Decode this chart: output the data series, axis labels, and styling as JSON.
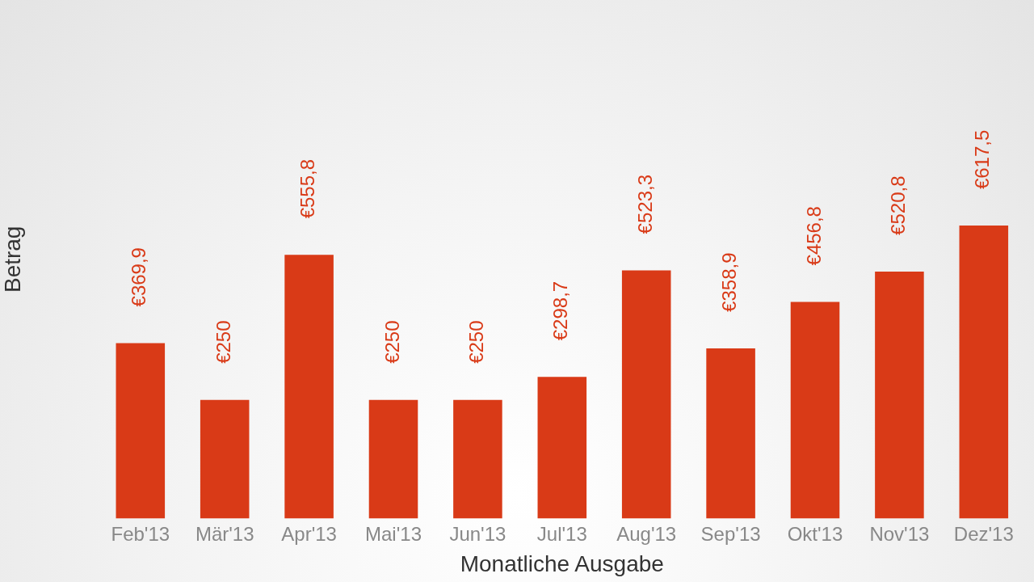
{
  "chart_data": {
    "type": "bar",
    "xlabel": "Monatliche Ausgabe",
    "ylabel": "Betrag",
    "categories": [
      "Feb'13",
      "Mär'13",
      "Apr'13",
      "Mai'13",
      "Jun'13",
      "Jul'13",
      "Aug'13",
      "Sep'13",
      "Okt'13",
      "Nov'13",
      "Dez'13"
    ],
    "values": [
      369.9,
      250,
      555.8,
      250,
      250,
      298.7,
      523.3,
      358.9,
      456.8,
      520.8,
      617.5
    ],
    "value_labels": [
      "€369,9",
      "€250",
      "€555,8",
      "€250",
      "€250",
      "€298,7",
      "€523,3",
      "€358,9",
      "€456,8",
      "€520,8",
      "€617,5"
    ],
    "color": "#d93a17",
    "grid": false,
    "legend": false
  }
}
